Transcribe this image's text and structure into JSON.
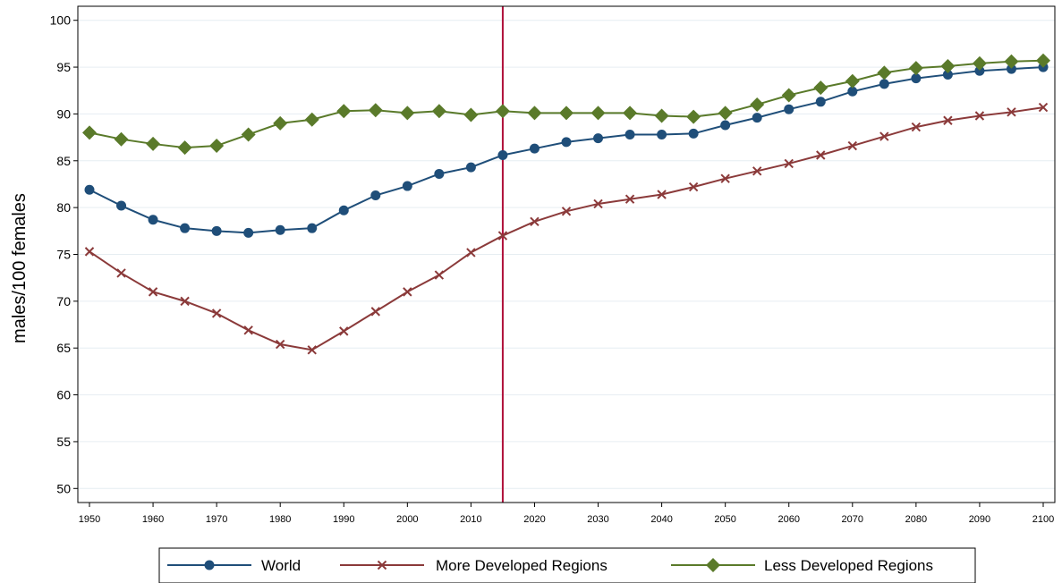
{
  "chart_data": {
    "type": "line",
    "title": "",
    "xlabel": "",
    "ylabel": "males/100 females",
    "x": [
      1950,
      1955,
      1960,
      1965,
      1970,
      1975,
      1980,
      1985,
      1990,
      1995,
      2000,
      2005,
      2010,
      2015,
      2020,
      2025,
      2030,
      2035,
      2040,
      2045,
      2050,
      2055,
      2060,
      2065,
      2070,
      2075,
      2080,
      2085,
      2090,
      2095,
      2100
    ],
    "xlim": [
      1950,
      2100
    ],
    "ylim": [
      48.5,
      101.5
    ],
    "xticks": [
      1950,
      1960,
      1970,
      1980,
      1990,
      2000,
      2010,
      2020,
      2030,
      2040,
      2050,
      2060,
      2070,
      2080,
      2090,
      2100
    ],
    "yticks": [
      50,
      55,
      60,
      65,
      70,
      75,
      80,
      85,
      90,
      95,
      100
    ],
    "grid": "horizontal",
    "vline_x": 2015,
    "legend_position": "bottom",
    "series": [
      {
        "name": "World",
        "color": "#1f4e79",
        "marker": "circle",
        "values": [
          81.9,
          80.2,
          78.7,
          77.8,
          77.5,
          77.3,
          77.6,
          77.8,
          79.7,
          81.3,
          82.3,
          83.6,
          84.3,
          85.6,
          86.3,
          87.0,
          87.4,
          87.8,
          87.8,
          87.9,
          88.8,
          89.6,
          90.5,
          91.3,
          92.4,
          93.2,
          93.8,
          94.2,
          94.6,
          94.8,
          95.0
        ]
      },
      {
        "name": "More Developed Regions",
        "color": "#8b3a3a",
        "marker": "x",
        "values": [
          75.3,
          73.0,
          71.0,
          70.0,
          68.7,
          66.9,
          65.4,
          64.8,
          66.8,
          68.9,
          71.0,
          72.8,
          75.2,
          77.0,
          78.5,
          79.6,
          80.4,
          80.9,
          81.4,
          82.2,
          83.1,
          83.9,
          84.7,
          85.6,
          86.6,
          87.6,
          88.6,
          89.3,
          89.8,
          90.2,
          90.7
        ]
      },
      {
        "name": "Less Developed Regions",
        "color": "#5a7a2a",
        "marker": "diamond",
        "values": [
          88.0,
          87.3,
          86.8,
          86.4,
          86.6,
          87.8,
          89.0,
          89.4,
          90.3,
          90.4,
          90.1,
          90.3,
          89.9,
          90.3,
          90.1,
          90.1,
          90.1,
          90.1,
          89.8,
          89.7,
          90.1,
          91.0,
          92.0,
          92.8,
          93.5,
          94.4,
          94.9,
          95.1,
          95.4,
          95.6,
          95.7
        ]
      }
    ]
  }
}
